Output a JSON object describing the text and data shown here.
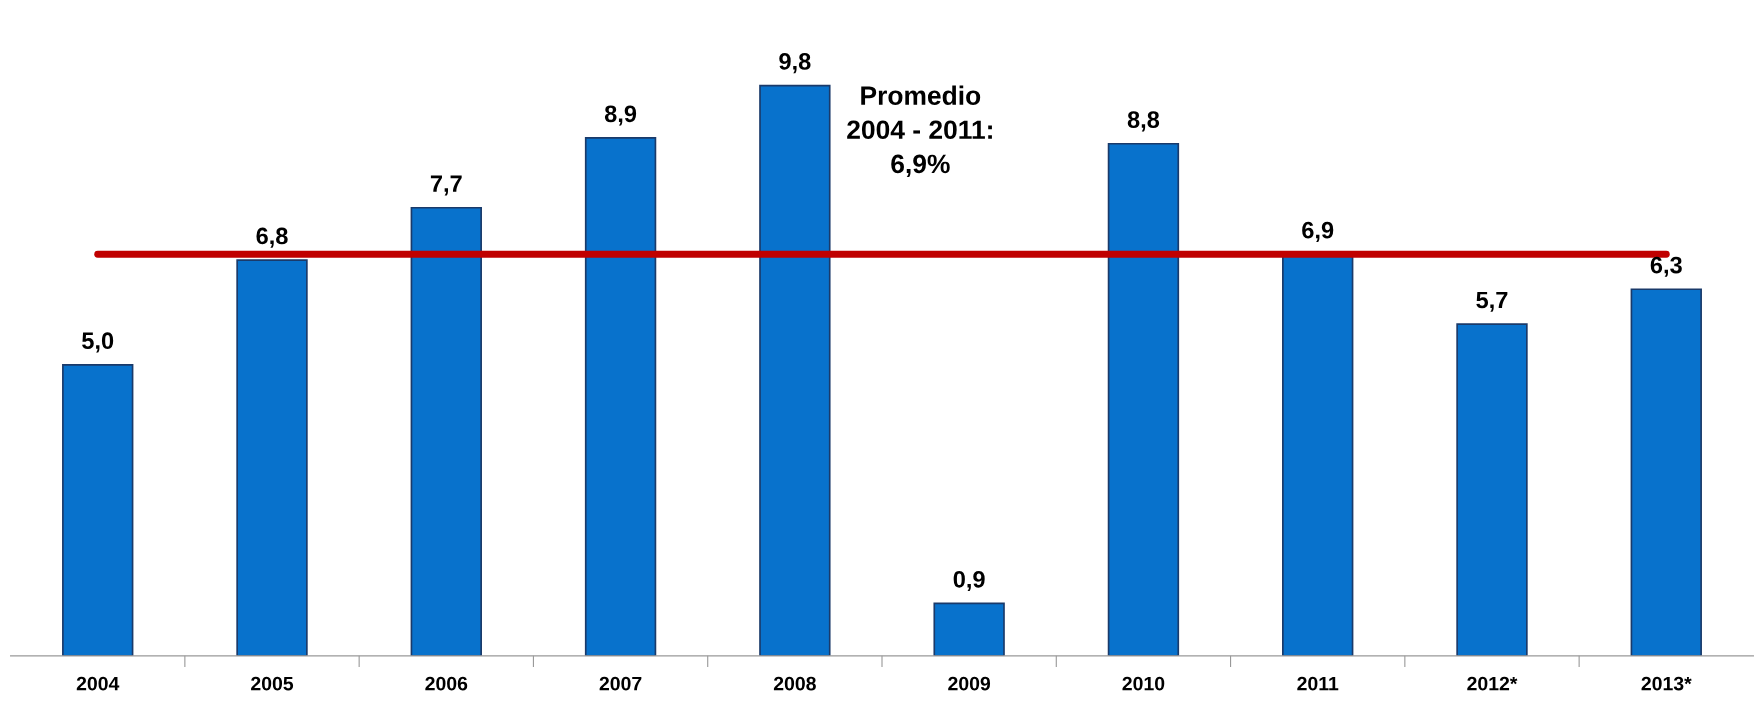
{
  "chart_data": {
    "type": "bar",
    "categories": [
      "2004",
      "2005",
      "2006",
      "2007",
      "2008",
      "2009",
      "2010",
      "2011",
      "2012*",
      "2013*"
    ],
    "values": [
      5.0,
      6.8,
      7.7,
      8.9,
      9.8,
      0.9,
      8.8,
      6.9,
      5.7,
      6.3
    ],
    "value_labels": [
      "5,0",
      "6,8",
      "7,7",
      "8,9",
      "9,8",
      "0,9",
      "8,8",
      "6,9",
      "5,7",
      "6,3"
    ],
    "color": "#0872cc",
    "tick_labels": "x",
    "grid": false,
    "legend": false,
    "annotations": [
      "Promedio\n2004 - 2011:\n6,9%"
    ],
    "ref_lines": [
      {
        "axis": "y",
        "value": 6.9,
        "color": "#c00000",
        "line_style": "solid"
      }
    ]
  }
}
